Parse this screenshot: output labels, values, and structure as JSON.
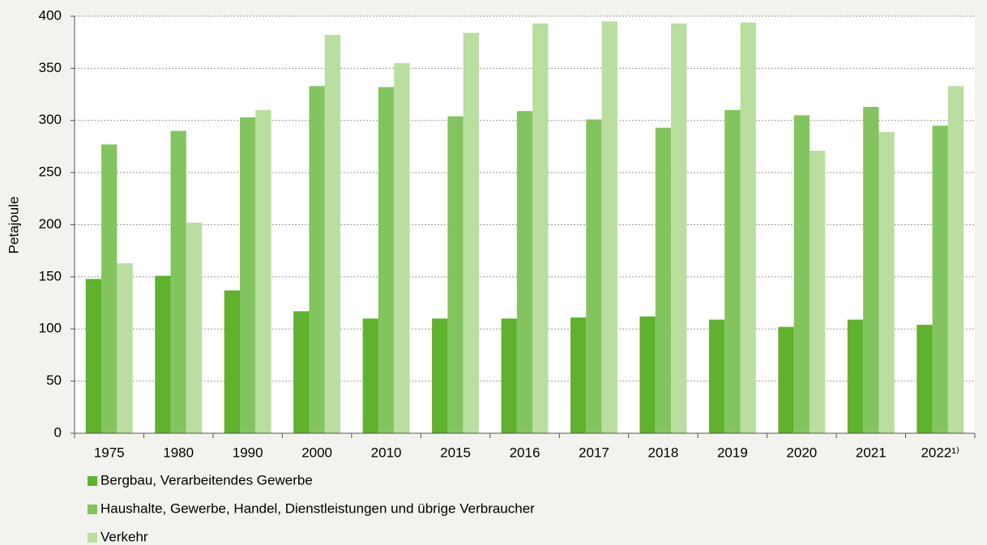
{
  "chart_data": {
    "type": "bar",
    "y_label": "Petajoule",
    "categories": [
      "1975",
      "1980",
      "1990",
      "2000",
      "2010",
      "2015",
      "2016",
      "2017",
      "2018",
      "2019",
      "2020",
      "2021",
      "2022¹⁾"
    ],
    "series": [
      {
        "name": "Bergbau, Verarbeitendes Gewerbe",
        "color": "#5fb12e",
        "values": [
          148,
          151,
          137,
          117,
          110,
          110,
          110,
          111,
          112,
          109,
          102,
          109,
          104
        ]
      },
      {
        "name": "Haushalte, Gewerbe, Handel, Dienstleistungen und übrige Verbraucher",
        "color": "#84c460",
        "values": [
          277,
          290,
          303,
          333,
          332,
          304,
          309,
          301,
          293,
          310,
          305,
          313,
          295
        ]
      },
      {
        "name": "Verkehr",
        "color": "#b9dea0",
        "values": [
          163,
          202,
          310,
          382,
          355,
          384,
          393,
          395,
          393,
          394,
          271,
          289,
          333
        ]
      }
    ],
    "ylim": [
      0,
      400
    ],
    "yticks": [
      0,
      50,
      100,
      150,
      200,
      250,
      300,
      350,
      400
    ],
    "grid": true
  }
}
